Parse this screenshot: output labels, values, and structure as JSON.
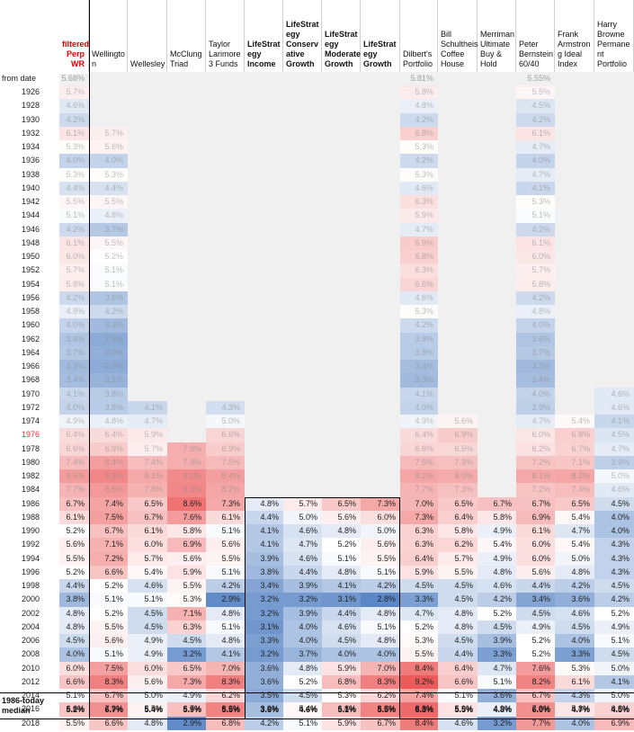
{
  "chart_data": {
    "type": "table",
    "title": "",
    "row_header_from": "from date",
    "median_label_line1": "1986-today",
    "median_label_line2": "median",
    "columns": [
      "filtered Perp WR",
      "Wellington",
      "Wellesley",
      "McClung Triad",
      "Taylor Larimore 3 Funds",
      "LifeStrategy Income",
      "LifeStrategy Conservative Growth",
      "LifeStrategy Moderate Growth",
      "LifeStrategy Growth",
      "Dilbert's Portfolio",
      "Bill Schultheis Coffee House",
      "Merriman Ultimate Buy & Hold",
      "Peter Bernstein 60/40",
      "Frank Armstrong Ideal Index",
      "Harry Browne Permanent Portfolio"
    ],
    "column_header_lines": [
      [
        "filtered",
        "Perp WR"
      ],
      [
        "Wellingto",
        "n"
      ],
      [
        "Wellesley"
      ],
      [
        "McClung",
        "Triad"
      ],
      [
        "Taylor",
        "Larimore",
        "3 Funds"
      ],
      [
        "LifeStrat",
        "egy",
        "Income"
      ],
      [
        "LifeStrat",
        "egy",
        "Conserv",
        "ative",
        "Growth"
      ],
      [
        "LifeStrat",
        "egy",
        "Moderate",
        "Growth"
      ],
      [
        "LifeStrat",
        "egy",
        "Growth"
      ],
      [
        "Dilbert's",
        "Portfolio"
      ],
      [
        "Bill",
        "Schultheis",
        "Coffee",
        "House"
      ],
      [
        "Merriman",
        "Ultimate",
        "Buy &",
        "Hold"
      ],
      [
        "Peter",
        "Bernstein",
        "60/40"
      ],
      [
        "Frank",
        "Armstron",
        "g Ideal",
        "Index"
      ],
      [
        "Harry",
        "Browne",
        "Permane",
        "nt",
        "Portfolio"
      ]
    ],
    "from_date_row": [
      "5.68%",
      null,
      null,
      null,
      null,
      null,
      null,
      null,
      null,
      "5.81%",
      null,
      null,
      "5.55%",
      null,
      null
    ],
    "years": [
      "1926",
      "1928",
      "1930",
      "1932",
      "1934",
      "1936",
      "1938",
      "1940",
      "1942",
      "1944",
      "1946",
      "1948",
      "1950",
      "1952",
      "1954",
      "1956",
      "1958",
      "1960",
      "1962",
      "1964",
      "1966",
      "1968",
      "1970",
      "1972",
      "1974",
      "1976",
      "1978",
      "1980",
      "1982",
      "1984",
      "1986",
      "1988",
      "1990",
      "1992",
      "1994",
      "1996",
      "1998",
      "2000",
      "2002",
      "2004",
      "2006",
      "2008",
      "2010",
      "2012",
      "2014",
      "2016",
      "2018"
    ],
    "values": [
      [
        5.7,
        null,
        null,
        null,
        null,
        null,
        null,
        null,
        null,
        5.8,
        null,
        null,
        5.5,
        null,
        null
      ],
      [
        4.6,
        null,
        null,
        null,
        null,
        null,
        null,
        null,
        null,
        4.8,
        null,
        null,
        4.5,
        null,
        null
      ],
      [
        4.2,
        null,
        null,
        null,
        null,
        null,
        null,
        null,
        null,
        4.2,
        null,
        null,
        4.2,
        null,
        null
      ],
      [
        6.1,
        5.7,
        null,
        null,
        null,
        null,
        null,
        null,
        null,
        6.8,
        null,
        null,
        6.1,
        null,
        null
      ],
      [
        5.3,
        5.6,
        null,
        null,
        null,
        null,
        null,
        null,
        null,
        5.3,
        null,
        null,
        4.7,
        null,
        null
      ],
      [
        4.0,
        4.0,
        null,
        null,
        null,
        null,
        null,
        null,
        null,
        4.2,
        null,
        null,
        4.0,
        null,
        null
      ],
      [
        5.3,
        5.3,
        null,
        null,
        null,
        null,
        null,
        null,
        null,
        5.3,
        null,
        null,
        4.7,
        null,
        null
      ],
      [
        4.4,
        4.4,
        null,
        null,
        null,
        null,
        null,
        null,
        null,
        4.6,
        null,
        null,
        4.1,
        null,
        null
      ],
      [
        5.5,
        5.5,
        null,
        null,
        null,
        null,
        null,
        null,
        null,
        6.3,
        null,
        null,
        5.3,
        null,
        null
      ],
      [
        5.1,
        4.8,
        null,
        null,
        null,
        null,
        null,
        null,
        null,
        5.9,
        null,
        null,
        5.1,
        null,
        null
      ],
      [
        4.2,
        3.7,
        null,
        null,
        null,
        null,
        null,
        null,
        null,
        4.7,
        null,
        null,
        4.2,
        null,
        null
      ],
      [
        6.1,
        5.5,
        null,
        null,
        null,
        null,
        null,
        null,
        null,
        6.9,
        null,
        null,
        6.1,
        null,
        null
      ],
      [
        6.0,
        5.2,
        null,
        null,
        null,
        null,
        null,
        null,
        null,
        6.8,
        null,
        null,
        6.0,
        null,
        null
      ],
      [
        5.7,
        5.1,
        null,
        null,
        null,
        null,
        null,
        null,
        null,
        6.3,
        null,
        null,
        5.7,
        null,
        null
      ],
      [
        5.8,
        5.1,
        null,
        null,
        null,
        null,
        null,
        null,
        null,
        6.6,
        null,
        null,
        5.8,
        null,
        null
      ],
      [
        4.2,
        3.6,
        null,
        null,
        null,
        null,
        null,
        null,
        null,
        4.6,
        null,
        null,
        4.2,
        null,
        null
      ],
      [
        4.8,
        4.2,
        null,
        null,
        null,
        null,
        null,
        null,
        null,
        5.3,
        null,
        null,
        4.8,
        null,
        null
      ],
      [
        4.0,
        3.3,
        null,
        null,
        null,
        null,
        null,
        null,
        null,
        4.2,
        null,
        null,
        4.0,
        null,
        null
      ],
      [
        3.6,
        2.9,
        null,
        null,
        null,
        null,
        null,
        null,
        null,
        3.8,
        null,
        null,
        3.6,
        null,
        null
      ],
      [
        3.7,
        3.0,
        null,
        null,
        null,
        null,
        null,
        null,
        null,
        3.8,
        null,
        null,
        3.7,
        null,
        null
      ],
      [
        3.3,
        2.9,
        null,
        null,
        null,
        null,
        null,
        null,
        null,
        3.4,
        null,
        null,
        3.3,
        null,
        null
      ],
      [
        3.4,
        3.1,
        null,
        null,
        null,
        null,
        null,
        null,
        null,
        3.3,
        null,
        null,
        3.4,
        null,
        null
      ],
      [
        4.1,
        3.8,
        null,
        null,
        null,
        null,
        null,
        null,
        null,
        4.1,
        null,
        null,
        4.0,
        null,
        4.6
      ],
      [
        4.0,
        3.8,
        4.1,
        null,
        4.3,
        null,
        null,
        null,
        null,
        4.0,
        null,
        null,
        3.9,
        null,
        4.6
      ],
      [
        4.9,
        4.8,
        4.7,
        null,
        5.0,
        null,
        null,
        null,
        null,
        4.9,
        5.6,
        null,
        4.7,
        5.4,
        4.1
      ],
      [
        6.4,
        6.4,
        5.9,
        null,
        6.6,
        null,
        null,
        null,
        null,
        6.4,
        6.9,
        null,
        6.0,
        6.8,
        4.5
      ],
      [
        6.6,
        6.9,
        5.7,
        7.9,
        6.9,
        null,
        null,
        null,
        null,
        6.6,
        6.5,
        null,
        6.2,
        6.7,
        4.7
      ],
      [
        7.4,
        8.4,
        7.4,
        7.9,
        7.5,
        null,
        null,
        null,
        null,
        7.5,
        7.3,
        null,
        7.2,
        7.1,
        3.9
      ],
      [
        8.5,
        9.2,
        8.1,
        9.1,
        8.4,
        null,
        null,
        null,
        null,
        8.2,
        8.0,
        null,
        8.1,
        8.2,
        5.0
      ],
      [
        7.7,
        8.6,
        7.8,
        9.2,
        8.2,
        null,
        null,
        null,
        null,
        7.7,
        7.3,
        null,
        7.2,
        7.4,
        4.6
      ],
      [
        6.7,
        7.4,
        6.5,
        8.6,
        7.3,
        4.8,
        5.7,
        6.5,
        7.3,
        7.0,
        6.5,
        6.7,
        6.7,
        6.5,
        4.5
      ],
      [
        6.1,
        7.5,
        6.7,
        7.6,
        6.1,
        4.4,
        5.0,
        5.6,
        6.0,
        7.3,
        6.4,
        5.8,
        6.9,
        5.4,
        4.0
      ],
      [
        5.2,
        6.7,
        6.1,
        5.8,
        5.1,
        4.1,
        4.6,
        4.8,
        5.0,
        6.3,
        5.8,
        4.9,
        6.1,
        4.7,
        4.0
      ],
      [
        5.6,
        7.1,
        6.0,
        6.9,
        5.6,
        4.1,
        4.7,
        5.2,
        5.6,
        6.3,
        6.2,
        5.4,
        6.0,
        5.4,
        4.3
      ],
      [
        5.5,
        7.2,
        5.7,
        5.6,
        5.5,
        3.9,
        4.6,
        5.1,
        5.5,
        6.4,
        5.7,
        4.9,
        6.0,
        5.0,
        4.3
      ],
      [
        5.2,
        6.6,
        5.4,
        5.9,
        5.1,
        3.8,
        4.4,
        4.8,
        5.1,
        5.9,
        5.5,
        4.8,
        5.6,
        4.8,
        4.3
      ],
      [
        4.4,
        5.2,
        4.6,
        5.5,
        4.2,
        3.4,
        3.9,
        4.1,
        4.2,
        4.5,
        4.5,
        4.6,
        4.4,
        4.2,
        4.5
      ],
      [
        3.8,
        5.1,
        5.1,
        5.3,
        2.9,
        3.2,
        3.2,
        3.1,
        2.8,
        3.3,
        4.5,
        4.2,
        3.4,
        3.6,
        4.2
      ],
      [
        4.8,
        5.2,
        4.5,
        7.1,
        4.8,
        3.2,
        3.9,
        4.4,
        4.8,
        4.7,
        4.8,
        5.2,
        4.5,
        4.6,
        5.2
      ],
      [
        4.8,
        5.5,
        4.5,
        6.3,
        5.1,
        3.1,
        4.0,
        4.6,
        5.1,
        5.2,
        4.8,
        4.5,
        4.9,
        4.5,
        4.9
      ],
      [
        4.5,
        5.6,
        4.9,
        4.5,
        4.8,
        3.3,
        4.0,
        4.5,
        4.8,
        5.3,
        4.5,
        3.9,
        5.2,
        4.0,
        5.1
      ],
      [
        4.0,
        5.1,
        4.9,
        3.2,
        4.1,
        3.2,
        3.7,
        4.0,
        4.0,
        5.5,
        4.4,
        3.3,
        5.2,
        3.3,
        4.5
      ],
      [
        6.0,
        7.5,
        6.0,
        6.5,
        7.0,
        3.6,
        4.8,
        5.9,
        7.0,
        8.4,
        6.4,
        4.7,
        7.6,
        5.3,
        5.0
      ],
      [
        6.6,
        8.3,
        5.6,
        7.3,
        8.3,
        3.6,
        5.2,
        6.8,
        8.3,
        9.2,
        6.6,
        5.1,
        8.2,
        6.1,
        4.1
      ],
      [
        5.1,
        6.7,
        5.0,
        4.9,
        6.2,
        3.5,
        4.5,
        5.3,
        6.2,
        7.4,
        5.1,
        3.6,
        6.7,
        4.3,
        5.0
      ],
      [
        6.6,
        7.9,
        5.5,
        6.7,
        8.2,
        3.9,
        5.4,
        6.8,
        8.2,
        8.8,
        5.9,
        4.9,
        7.9,
        5.8,
        6.3
      ],
      [
        5.5,
        6.6,
        4.8,
        2.9,
        6.8,
        4.2,
        5.1,
        5.9,
        6.7,
        8.4,
        4.6,
        3.2,
        7.7,
        4.0,
        6.9
      ]
    ],
    "median_1986_today": [
      "5.2%",
      "6.7%",
      "5.4%",
      "5.9%",
      "5.5%",
      "3.6%",
      "4.6%",
      "5.1%",
      "5.5%",
      "6.3%",
      "5.5%",
      "4.8%",
      "6.0%",
      "4.7%",
      "4.5%"
    ],
    "scale": {
      "low": 2.8,
      "mid": 5.2,
      "high": 9.2,
      "low_color": "#5b87c6",
      "mid_color": "#ffffff",
      "high_color": "#ec5a5a"
    },
    "highlight_year": "1976"
  }
}
